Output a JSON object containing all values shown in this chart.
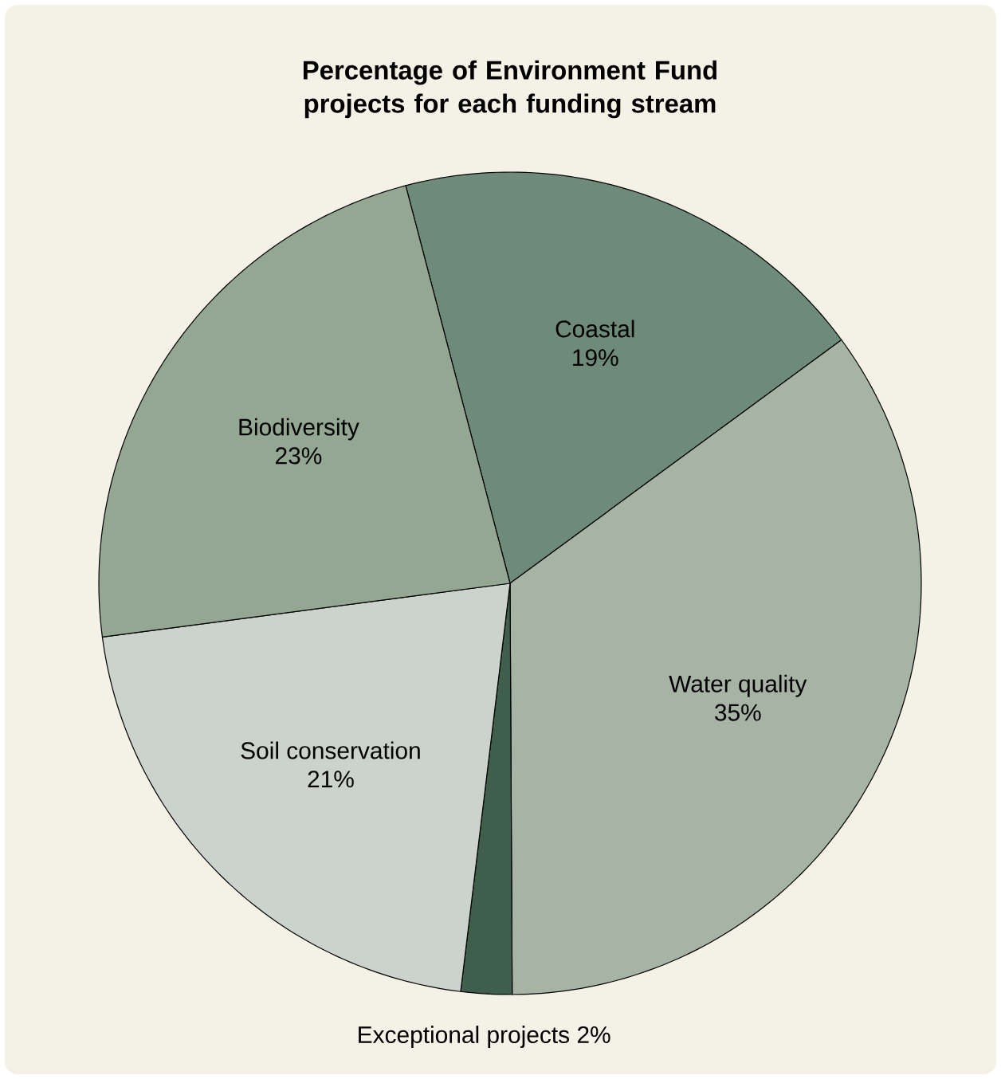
{
  "chart_data": {
    "type": "pie",
    "title": "Percentage of Environment Fund projects for each funding stream",
    "categories": [
      "Coastal",
      "Water quality",
      "Exceptional projects",
      "Soil conservation",
      "Biodiversity"
    ],
    "values": [
      19,
      35,
      2,
      21,
      23
    ],
    "value_labels": [
      "19%",
      "35%",
      "2%",
      "21%",
      "23%"
    ],
    "colors": [
      "#6e8a78",
      "#a7b3a5",
      "#3f5e4c",
      "#ccd3cc",
      "#93a793"
    ]
  }
}
